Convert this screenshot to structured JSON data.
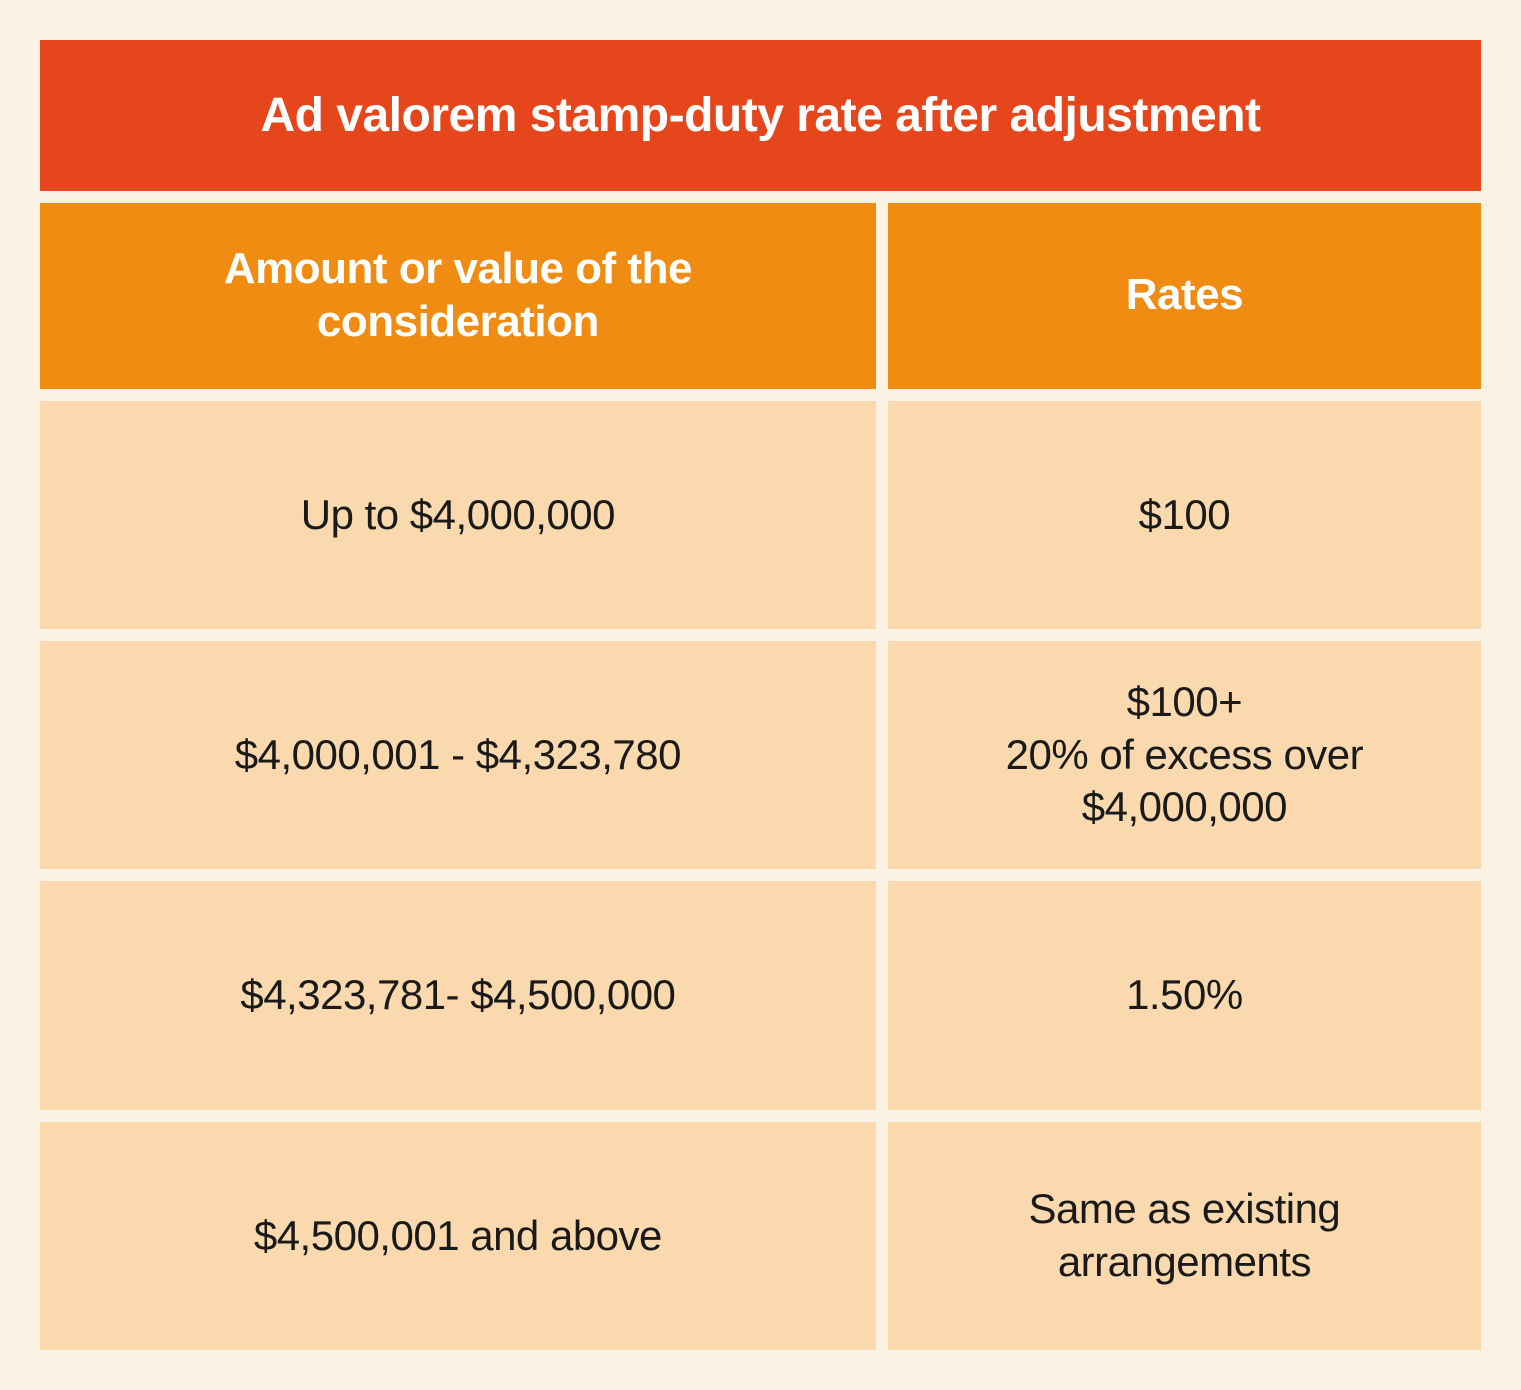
{
  "table": {
    "type": "table",
    "title": "Ad valorem stamp-duty rate after adjustment",
    "columns": [
      "Amount or value of the\nconsideration",
      "Rates"
    ],
    "rows": [
      [
        "Up to $4,000,000",
        "$100"
      ],
      [
        "$4,000,001 - $4,323,780",
        "$100+\n20% of excess over\n$4,000,000"
      ],
      [
        "$4,323,781- $4,500,000",
        "1.50%"
      ],
      [
        "$4,500,001 and above",
        "Same as existing\narrangements"
      ]
    ],
    "styling": {
      "page_background": "#fcf2e4",
      "title_background": "#e6461b",
      "title_text_color": "#ffffff",
      "title_fontsize": 48,
      "title_fontweight": 600,
      "header_background": "#ef8c11",
      "header_text_color": "#ffffff",
      "header_fontsize": 44,
      "header_fontweight": 600,
      "cell_background": "#fad9ae",
      "cell_text_color": "#1a1a1a",
      "cell_fontsize": 42,
      "cell_fontweight": 400,
      "gap": 12,
      "col_left_width_pct": 58,
      "col_right_width_pct": 42,
      "font_family": "Helvetica Neue"
    }
  }
}
